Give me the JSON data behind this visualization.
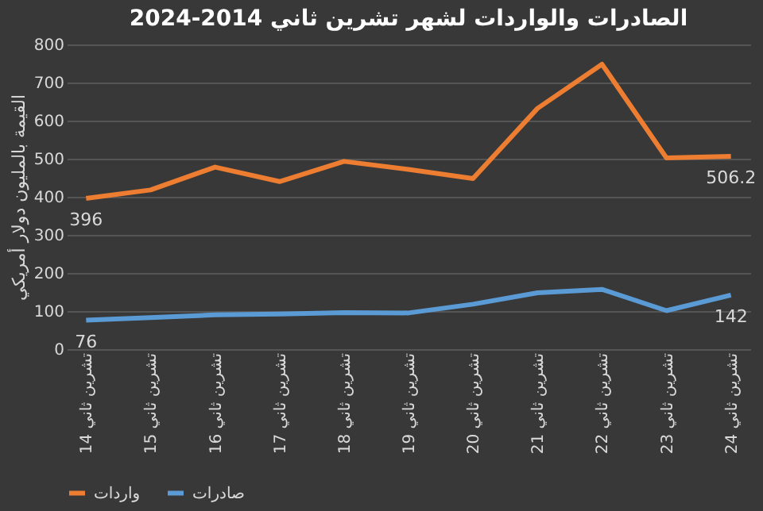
{
  "chart_data": {
    "type": "line",
    "title": "الصادرات والواردات لشهر تشرين ثاني 2014-2024",
    "ylabel": "القيمة بالمليون دولار أمريكي",
    "categories": [
      "تشرين ثاني 14",
      "تشرين ثاني 15",
      "تشرين ثاني 16",
      "تشرين ثاني 17",
      "تشرين ثاني 18",
      "تشرين ثاني 19",
      "تشرين ثاني 20",
      "تشرين ثاني 21",
      "تشرين ثاني 22",
      "تشرين ثاني 23",
      "تشرين ثاني 24"
    ],
    "series": [
      {
        "name": "واردات",
        "color": "#ed7d31",
        "values": [
          396,
          418,
          478,
          440,
          493,
          472,
          448,
          632,
          748,
          502,
          506.2
        ],
        "value_labels": [
          "396",
          null,
          null,
          null,
          null,
          null,
          null,
          null,
          null,
          null,
          "506.2"
        ]
      },
      {
        "name": "صادرات",
        "color": "#5b9bd5",
        "values": [
          76,
          83,
          90,
          92,
          96,
          95,
          118,
          148,
          157,
          101,
          142
        ],
        "value_labels": [
          "76",
          null,
          null,
          null,
          null,
          null,
          null,
          null,
          null,
          null,
          "142"
        ]
      }
    ],
    "ylim": [
      0,
      800
    ],
    "yticks": [
      0,
      100,
      200,
      300,
      400,
      500,
      600,
      700,
      800
    ],
    "grid": "y",
    "legend": "bottom",
    "marker": "none",
    "line_style": "solid"
  }
}
